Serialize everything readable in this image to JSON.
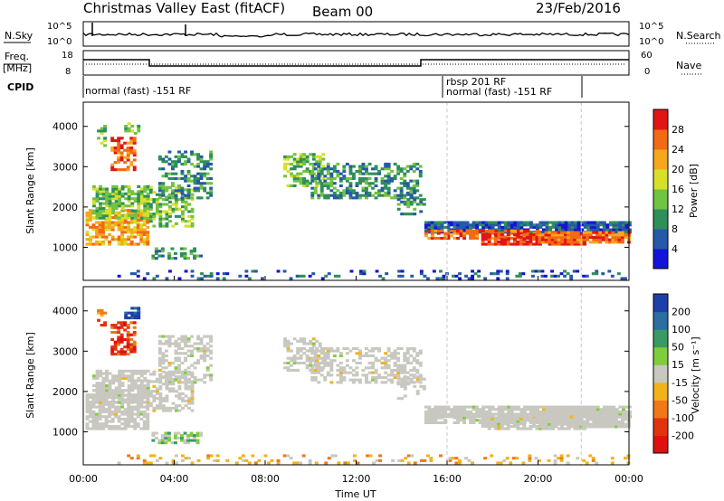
{
  "header": {
    "title": "Christmas Valley East (fitACF)",
    "beam": "Beam 00",
    "date": "23/Feb/2016"
  },
  "top_panels": {
    "nsky_label": "N.Sky",
    "nsky_ticks": [
      "10^5",
      "10^0"
    ],
    "nsearch_label": "N.Search",
    "nsearch_ticks": [
      "10^5",
      "10^0"
    ],
    "freq_label": "Freq.",
    "freq_unit": "[MHz]",
    "freq_ticks": [
      "18",
      "8"
    ],
    "nave_label": "Nave",
    "nave_ticks": [
      "60",
      "0"
    ],
    "cpid_label": "CPID",
    "cpid_segments": [
      "normal (fast) -151 RF",
      "rbsp 201 RF",
      "normal (fast) -151 RF"
    ]
  },
  "colors": {
    "power": [
      "#1414d8",
      "#2659a8",
      "#2e8f5a",
      "#72c244",
      "#d6e028",
      "#f6a71e",
      "#f36a14",
      "#e21515"
    ],
    "velocity": [
      "#1c3fa8",
      "#2a6fa0",
      "#3a9a64",
      "#7fcd3c",
      "#c8c8c0",
      "#f2b21c",
      "#f07818",
      "#e0340e",
      "#e01010"
    ]
  },
  "chart_data": [
    {
      "type": "heatmap",
      "title": "Power",
      "ylabel": "Slant Range [km]",
      "xlabel": "Time UT",
      "x_ticks": [
        "00:00",
        "04:00",
        "08:00",
        "12:00",
        "16:00",
        "20:00",
        "00:00"
      ],
      "y_ticks": [
        "4000",
        "3000",
        "2000",
        "1000"
      ],
      "xlim_hours": [
        0,
        24
      ],
      "ylim_km": [
        180,
        4600
      ],
      "colorbar_label": "Power [dB]",
      "colorbar_ticks": [
        "28",
        "24",
        "20",
        "16",
        "12",
        "8",
        "4"
      ],
      "colorbar_range": [
        0,
        32
      ],
      "grid": false
    },
    {
      "type": "heatmap",
      "title": "Velocity",
      "ylabel": "Slant Range [km]",
      "xlabel": "Time UT",
      "x_ticks": [
        "00:00",
        "04:00",
        "08:00",
        "12:00",
        "16:00",
        "20:00",
        "00:00"
      ],
      "y_ticks": [
        "4000",
        "3000",
        "2000",
        "1000"
      ],
      "xlim_hours": [
        0,
        24
      ],
      "ylim_km": [
        180,
        4600
      ],
      "colorbar_label": "Velocity [m s⁻¹]",
      "colorbar_ticks": [
        "200",
        "100",
        "50",
        "15",
        "-15",
        "-50",
        "-100",
        "-200"
      ],
      "colorbar_range": [
        -250,
        250
      ],
      "grid": false
    }
  ],
  "footer": {
    "xlabel": "Time UT"
  }
}
